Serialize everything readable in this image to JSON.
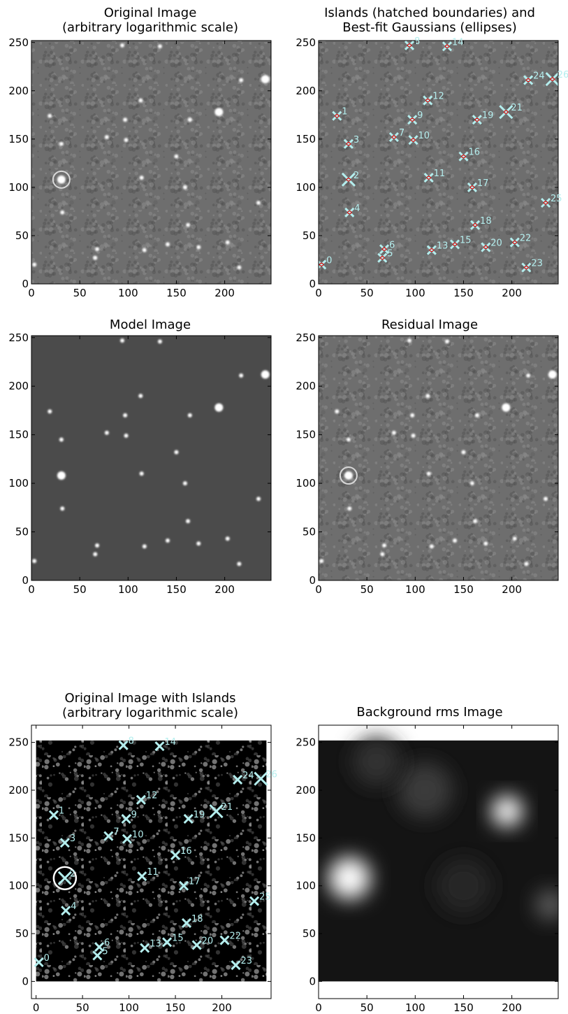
{
  "colors": {
    "marker": "#b4eeee",
    "ellipse": "#dd0000",
    "model_bg": "#4b4b4b",
    "noise_gray": "#6e6e6e",
    "islands_bg": "#000000"
  },
  "chart_data": [
    {
      "id": "original",
      "type": "heatmap",
      "title": "Original Image",
      "subtitle": "(arbitrary logarithmic scale)",
      "xlim": [
        0,
        248
      ],
      "ylim": [
        0,
        252
      ],
      "xticks": [
        0,
        50,
        100,
        150,
        200
      ],
      "yticks": [
        0,
        50,
        100,
        150,
        200,
        250
      ],
      "render": "noise"
    },
    {
      "id": "islands",
      "type": "heatmap",
      "title": "Islands (hatched boundaries) and",
      "subtitle": "Best-fit Gaussians (ellipses)",
      "xlim": [
        0,
        248
      ],
      "ylim": [
        0,
        252
      ],
      "xticks": [
        0,
        50,
        100,
        150,
        200
      ],
      "yticks": [
        0,
        50,
        100,
        150,
        200,
        250
      ],
      "render": "noise-with-sources"
    },
    {
      "id": "model",
      "type": "heatmap",
      "title": "Model Image",
      "subtitle": "",
      "xlim": [
        0,
        248
      ],
      "ylim": [
        0,
        252
      ],
      "xticks": [
        0,
        50,
        100,
        150,
        200
      ],
      "yticks": [
        0,
        50,
        100,
        150,
        200,
        250
      ],
      "render": "model"
    },
    {
      "id": "residual",
      "type": "heatmap",
      "title": "Residual Image",
      "subtitle": "",
      "xlim": [
        0,
        248
      ],
      "ylim": [
        0,
        252
      ],
      "xticks": [
        0,
        50,
        100,
        150,
        200
      ],
      "yticks": [
        0,
        50,
        100,
        150,
        200,
        250
      ],
      "render": "noise"
    },
    {
      "id": "islands-dark",
      "type": "heatmap",
      "title": "Original Image with Islands",
      "subtitle": "(arbitrary logarithmic scale)",
      "xlim": [
        -5,
        253
      ],
      "ylim": [
        -18,
        268
      ],
      "xticks": [
        0,
        50,
        100,
        150,
        200
      ],
      "yticks": [
        0,
        50,
        100,
        150,
        200,
        250
      ],
      "render": "dark-with-sources"
    },
    {
      "id": "rms",
      "type": "heatmap",
      "title": "Background rms Image",
      "subtitle": "",
      "xlim": [
        0,
        248
      ],
      "ylim": [
        -18,
        268
      ],
      "xticks": [
        0,
        50,
        100,
        150,
        200
      ],
      "yticks": [
        0,
        50,
        100,
        150,
        200,
        250
      ],
      "render": "rms"
    }
  ],
  "sources": [
    {
      "label": "0",
      "x": 3,
      "y": 20
    },
    {
      "label": "1",
      "x": 19,
      "y": 174
    },
    {
      "label": "2",
      "x": 31,
      "y": 108
    },
    {
      "label": "3",
      "x": 31,
      "y": 145
    },
    {
      "label": "4",
      "x": 32,
      "y": 74
    },
    {
      "label": "5",
      "x": 66,
      "y": 27
    },
    {
      "label": "6",
      "x": 68,
      "y": 36
    },
    {
      "label": "7",
      "x": 78,
      "y": 152
    },
    {
      "label": "8",
      "x": 94,
      "y": 247
    },
    {
      "label": "9",
      "x": 97,
      "y": 170
    },
    {
      "label": "10",
      "x": 98,
      "y": 149
    },
    {
      "label": "11",
      "x": 114,
      "y": 110
    },
    {
      "label": "12",
      "x": 113,
      "y": 190
    },
    {
      "label": "13",
      "x": 117,
      "y": 35
    },
    {
      "label": "14",
      "x": 133,
      "y": 246
    },
    {
      "label": "15",
      "x": 141,
      "y": 41
    },
    {
      "label": "16",
      "x": 150,
      "y": 132
    },
    {
      "label": "17",
      "x": 159,
      "y": 100
    },
    {
      "label": "18",
      "x": 162,
      "y": 61
    },
    {
      "label": "19",
      "x": 164,
      "y": 170
    },
    {
      "label": "20",
      "x": 173,
      "y": 38
    },
    {
      "label": "21",
      "x": 194,
      "y": 178
    },
    {
      "label": "22",
      "x": 203,
      "y": 43
    },
    {
      "label": "23",
      "x": 215,
      "y": 17
    },
    {
      "label": "24",
      "x": 217,
      "y": 211
    },
    {
      "label": "25",
      "x": 235,
      "y": 84
    },
    {
      "label": "26",
      "x": 242,
      "y": 212
    }
  ]
}
